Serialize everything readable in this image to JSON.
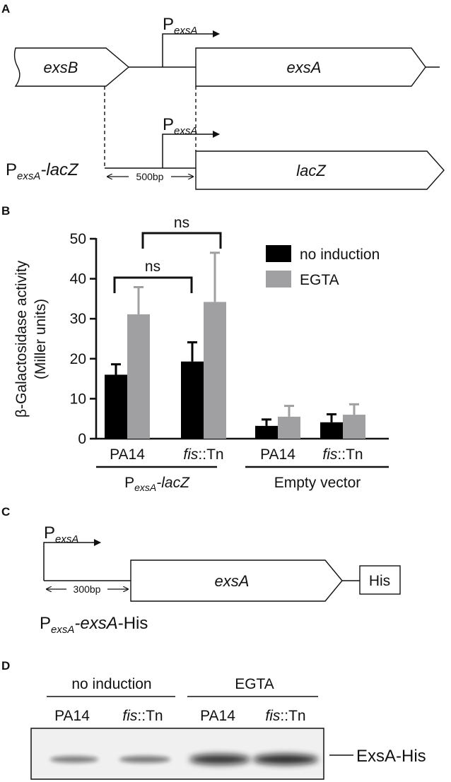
{
  "panel_a": {
    "letter": "A",
    "gene_exsb": "exsB",
    "gene_exsa": "exsA",
    "gene_lacz": "lacZ",
    "promoter_p": "P",
    "promoter_sub": "exsA",
    "construct_p": "P",
    "construct_sub": "exsA",
    "construct_rest": "-lacZ",
    "distance": "500bp"
  },
  "panel_b": {
    "letter": "B",
    "ylabel_line1": "β-Galactosidase activity",
    "ylabel_line2": "(Miller units)",
    "legend": [
      "no induction",
      "EGTA"
    ],
    "significance": [
      "ns",
      "ns"
    ],
    "group1_p": "P",
    "group1_sub": "exsA",
    "group1_rest": "-lacZ",
    "group2_label": "Empty vector",
    "strain_pa14": "PA14",
    "strain_fis_italic": "fis",
    "strain_fis_rest": "::Tn",
    "colors": {
      "no_induction": "#000000",
      "egta": "#a0a0a2"
    }
  },
  "chart_data": {
    "type": "bar",
    "categories": [
      "PA14",
      "fis::Tn",
      "PA14",
      "fis::Tn"
    ],
    "groups": [
      "PexsA-lacZ",
      "Empty vector"
    ],
    "ylabel": "β-Galactosidase activity (Miller units)",
    "ylim": [
      0,
      50
    ],
    "yticks": [
      0,
      10,
      20,
      30,
      40,
      50
    ],
    "series": [
      {
        "name": "no induction",
        "values": [
          16,
          19.3,
          3.2,
          4.1
        ],
        "errors": [
          2.6,
          4.8,
          1.6,
          2.0
        ]
      },
      {
        "name": "EGTA",
        "values": [
          31.1,
          34.2,
          5.5,
          6.0
        ],
        "errors": [
          6.8,
          12.3,
          2.7,
          2.6
        ]
      }
    ],
    "legend_position": "top-right",
    "grid": false
  },
  "panel_c": {
    "letter": "C",
    "promoter_p": "P",
    "promoter_sub": "exsA",
    "gene_exsa": "exsA",
    "tag": "His",
    "distance": "300bp",
    "construct_p": "P",
    "construct_sub": "exsA",
    "construct_gene": "-exsA",
    "construct_rest": "-His"
  },
  "panel_d": {
    "letter": "D",
    "group1": "no induction",
    "group2": "EGTA",
    "lanes": [
      "PA14",
      "fis::Tn",
      "PA14",
      "fis::Tn"
    ],
    "lane_pa14": "PA14",
    "lane_fis_italic": "fis",
    "lane_fis_rest": "::Tn",
    "band_label": "ExsA-His",
    "band_intensity": [
      0.35,
      0.38,
      0.85,
      0.9
    ]
  }
}
